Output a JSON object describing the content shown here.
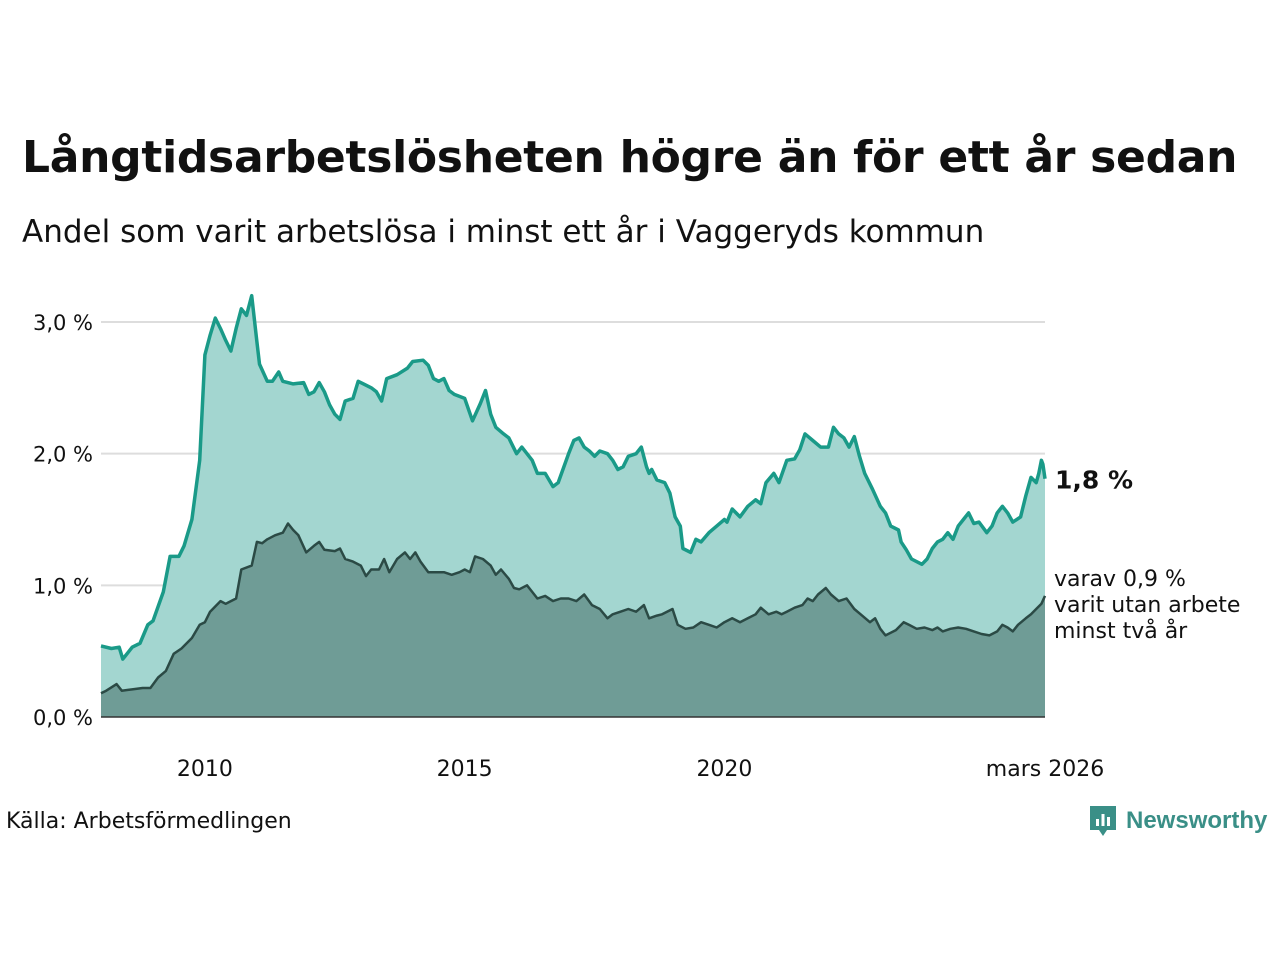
{
  "title": "Långtidsarbetslösheten högre än för ett år sedan",
  "subtitle": "Andel som varit arbetslösa i minst ett år i Vaggeryds kommun",
  "source": "Källa: Arbetsförmedlingen",
  "logo_text": "Newsworthy",
  "colors": {
    "upper_line": "#1a9a88",
    "upper_fill": "#a3d6d0",
    "lower_line": "#2b4a45",
    "lower_fill": "#6f9c96",
    "grid": "#dddddd",
    "logo": "#3a8f87"
  },
  "chart_data": {
    "type": "area",
    "x_unit": "year",
    "xlim": [
      2008.0,
      2026.17
    ],
    "ylim": [
      0,
      3.3
    ],
    "y_ticks": [
      0,
      1,
      2,
      3
    ],
    "y_tick_labels": [
      "0,0 %",
      "1,0 %",
      "2,0 %",
      "3,0 %"
    ],
    "x_ticks": [
      2010,
      2015,
      2020,
      2026.17
    ],
    "x_tick_labels": [
      "2010",
      "2015",
      "2020",
      "mars 2026"
    ],
    "series": [
      {
        "name": "Minst ett år",
        "end_label": "1,8 %",
        "points": [
          [
            2008.0,
            0.54
          ],
          [
            2008.2,
            0.52
          ],
          [
            2008.35,
            0.53
          ],
          [
            2008.42,
            0.44
          ],
          [
            2008.6,
            0.53
          ],
          [
            2008.75,
            0.56
          ],
          [
            2008.9,
            0.7
          ],
          [
            2009.0,
            0.73
          ],
          [
            2009.2,
            0.95
          ],
          [
            2009.33,
            1.22
          ],
          [
            2009.5,
            1.22
          ],
          [
            2009.6,
            1.3
          ],
          [
            2009.75,
            1.5
          ],
          [
            2009.9,
            1.95
          ],
          [
            2010.0,
            2.75
          ],
          [
            2010.1,
            2.9
          ],
          [
            2010.2,
            3.03
          ],
          [
            2010.3,
            2.95
          ],
          [
            2010.4,
            2.86
          ],
          [
            2010.5,
            2.78
          ],
          [
            2010.6,
            2.95
          ],
          [
            2010.7,
            3.1
          ],
          [
            2010.8,
            3.05
          ],
          [
            2010.9,
            3.2
          ],
          [
            2011.0,
            2.85
          ],
          [
            2011.05,
            2.68
          ],
          [
            2011.2,
            2.55
          ],
          [
            2011.3,
            2.55
          ],
          [
            2011.42,
            2.62
          ],
          [
            2011.5,
            2.55
          ],
          [
            2011.7,
            2.53
          ],
          [
            2011.9,
            2.54
          ],
          [
            2012.0,
            2.45
          ],
          [
            2012.1,
            2.47
          ],
          [
            2012.2,
            2.54
          ],
          [
            2012.3,
            2.47
          ],
          [
            2012.4,
            2.37
          ],
          [
            2012.5,
            2.3
          ],
          [
            2012.6,
            2.26
          ],
          [
            2012.7,
            2.4
          ],
          [
            2012.85,
            2.42
          ],
          [
            2012.95,
            2.55
          ],
          [
            2013.1,
            2.52
          ],
          [
            2013.2,
            2.5
          ],
          [
            2013.3,
            2.47
          ],
          [
            2013.4,
            2.4
          ],
          [
            2013.5,
            2.57
          ],
          [
            2013.7,
            2.6
          ],
          [
            2013.9,
            2.65
          ],
          [
            2014.0,
            2.7
          ],
          [
            2014.2,
            2.71
          ],
          [
            2014.3,
            2.67
          ],
          [
            2014.4,
            2.57
          ],
          [
            2014.5,
            2.55
          ],
          [
            2014.6,
            2.57
          ],
          [
            2014.7,
            2.48
          ],
          [
            2014.8,
            2.45
          ],
          [
            2015.0,
            2.42
          ],
          [
            2015.15,
            2.25
          ],
          [
            2015.3,
            2.38
          ],
          [
            2015.4,
            2.48
          ],
          [
            2015.5,
            2.3
          ],
          [
            2015.6,
            2.2
          ],
          [
            2015.75,
            2.15
          ],
          [
            2015.85,
            2.12
          ],
          [
            2016.0,
            2.0
          ],
          [
            2016.1,
            2.05
          ],
          [
            2016.3,
            1.95
          ],
          [
            2016.4,
            1.85
          ],
          [
            2016.55,
            1.85
          ],
          [
            2016.7,
            1.75
          ],
          [
            2016.8,
            1.78
          ],
          [
            2017.0,
            2.0
          ],
          [
            2017.1,
            2.1
          ],
          [
            2017.2,
            2.12
          ],
          [
            2017.3,
            2.05
          ],
          [
            2017.4,
            2.02
          ],
          [
            2017.5,
            1.98
          ],
          [
            2017.6,
            2.02
          ],
          [
            2017.75,
            2.0
          ],
          [
            2017.85,
            1.95
          ],
          [
            2017.95,
            1.88
          ],
          [
            2018.05,
            1.9
          ],
          [
            2018.15,
            1.98
          ],
          [
            2018.3,
            2.0
          ],
          [
            2018.4,
            2.05
          ],
          [
            2018.5,
            1.9
          ],
          [
            2018.55,
            1.85
          ],
          [
            2018.6,
            1.88
          ],
          [
            2018.7,
            1.8
          ],
          [
            2018.85,
            1.78
          ],
          [
            2018.95,
            1.7
          ],
          [
            2019.05,
            1.52
          ],
          [
            2019.15,
            1.45
          ],
          [
            2019.2,
            1.28
          ],
          [
            2019.35,
            1.25
          ],
          [
            2019.45,
            1.35
          ],
          [
            2019.55,
            1.33
          ],
          [
            2019.7,
            1.4
          ],
          [
            2019.85,
            1.45
          ],
          [
            2020.0,
            1.5
          ],
          [
            2020.05,
            1.48
          ],
          [
            2020.15,
            1.58
          ],
          [
            2020.3,
            1.52
          ],
          [
            2020.45,
            1.6
          ],
          [
            2020.6,
            1.65
          ],
          [
            2020.7,
            1.62
          ],
          [
            2020.8,
            1.78
          ],
          [
            2020.95,
            1.85
          ],
          [
            2021.05,
            1.78
          ],
          [
            2021.2,
            1.95
          ],
          [
            2021.35,
            1.96
          ],
          [
            2021.45,
            2.03
          ],
          [
            2021.55,
            2.15
          ],
          [
            2021.7,
            2.1
          ],
          [
            2021.85,
            2.05
          ],
          [
            2022.0,
            2.05
          ],
          [
            2022.1,
            2.2
          ],
          [
            2022.2,
            2.15
          ],
          [
            2022.3,
            2.12
          ],
          [
            2022.4,
            2.05
          ],
          [
            2022.5,
            2.13
          ],
          [
            2022.6,
            1.98
          ],
          [
            2022.7,
            1.85
          ],
          [
            2022.85,
            1.73
          ],
          [
            2023.0,
            1.6
          ],
          [
            2023.1,
            1.55
          ],
          [
            2023.2,
            1.45
          ],
          [
            2023.35,
            1.42
          ],
          [
            2023.4,
            1.33
          ],
          [
            2023.5,
            1.27
          ],
          [
            2023.6,
            1.2
          ],
          [
            2023.8,
            1.16
          ],
          [
            2023.9,
            1.2
          ],
          [
            2024.0,
            1.28
          ],
          [
            2024.1,
            1.33
          ],
          [
            2024.2,
            1.35
          ],
          [
            2024.3,
            1.4
          ],
          [
            2024.4,
            1.35
          ],
          [
            2024.5,
            1.45
          ],
          [
            2024.6,
            1.5
          ],
          [
            2024.7,
            1.55
          ],
          [
            2024.8,
            1.47
          ],
          [
            2024.9,
            1.48
          ],
          [
            2025.05,
            1.4
          ],
          [
            2025.15,
            1.45
          ],
          [
            2025.25,
            1.55
          ],
          [
            2025.35,
            1.6
          ],
          [
            2025.45,
            1.55
          ],
          [
            2025.55,
            1.48
          ],
          [
            2025.7,
            1.52
          ],
          [
            2025.8,
            1.68
          ],
          [
            2025.9,
            1.82
          ],
          [
            2026.0,
            1.78
          ],
          [
            2026.05,
            1.85
          ],
          [
            2026.1,
            1.95
          ],
          [
            2026.13,
            1.92
          ],
          [
            2026.17,
            1.81
          ]
        ]
      },
      {
        "name": "Minst två år",
        "end_label_lines": [
          "varav 0,9 %",
          "varit utan arbete",
          "minst två år"
        ],
        "points": [
          [
            2008.0,
            0.18
          ],
          [
            2008.1,
            0.2
          ],
          [
            2008.3,
            0.25
          ],
          [
            2008.4,
            0.2
          ],
          [
            2008.6,
            0.21
          ],
          [
            2008.8,
            0.22
          ],
          [
            2008.95,
            0.22
          ],
          [
            2009.1,
            0.3
          ],
          [
            2009.25,
            0.35
          ],
          [
            2009.4,
            0.48
          ],
          [
            2009.55,
            0.52
          ],
          [
            2009.75,
            0.6
          ],
          [
            2009.9,
            0.7
          ],
          [
            2010.0,
            0.72
          ],
          [
            2010.1,
            0.8
          ],
          [
            2010.3,
            0.88
          ],
          [
            2010.4,
            0.86
          ],
          [
            2010.5,
            0.88
          ],
          [
            2010.6,
            0.9
          ],
          [
            2010.7,
            1.12
          ],
          [
            2010.9,
            1.15
          ],
          [
            2011.0,
            1.33
          ],
          [
            2011.1,
            1.32
          ],
          [
            2011.2,
            1.35
          ],
          [
            2011.35,
            1.38
          ],
          [
            2011.5,
            1.4
          ],
          [
            2011.6,
            1.47
          ],
          [
            2011.7,
            1.42
          ],
          [
            2011.8,
            1.38
          ],
          [
            2011.95,
            1.25
          ],
          [
            2012.1,
            1.3
          ],
          [
            2012.2,
            1.33
          ],
          [
            2012.3,
            1.27
          ],
          [
            2012.5,
            1.26
          ],
          [
            2012.6,
            1.28
          ],
          [
            2012.7,
            1.2
          ],
          [
            2012.85,
            1.18
          ],
          [
            2013.0,
            1.15
          ],
          [
            2013.1,
            1.07
          ],
          [
            2013.2,
            1.12
          ],
          [
            2013.35,
            1.12
          ],
          [
            2013.45,
            1.2
          ],
          [
            2013.55,
            1.1
          ],
          [
            2013.7,
            1.2
          ],
          [
            2013.85,
            1.25
          ],
          [
            2013.95,
            1.2
          ],
          [
            2014.05,
            1.25
          ],
          [
            2014.15,
            1.18
          ],
          [
            2014.3,
            1.1
          ],
          [
            2014.45,
            1.1
          ],
          [
            2014.6,
            1.1
          ],
          [
            2014.75,
            1.08
          ],
          [
            2014.9,
            1.1
          ],
          [
            2015.0,
            1.12
          ],
          [
            2015.1,
            1.1
          ],
          [
            2015.2,
            1.22
          ],
          [
            2015.35,
            1.2
          ],
          [
            2015.5,
            1.15
          ],
          [
            2015.6,
            1.08
          ],
          [
            2015.7,
            1.12
          ],
          [
            2015.85,
            1.05
          ],
          [
            2015.95,
            0.98
          ],
          [
            2016.05,
            0.97
          ],
          [
            2016.2,
            1.0
          ],
          [
            2016.3,
            0.95
          ],
          [
            2016.4,
            0.9
          ],
          [
            2016.55,
            0.92
          ],
          [
            2016.7,
            0.88
          ],
          [
            2016.85,
            0.9
          ],
          [
            2017.0,
            0.9
          ],
          [
            2017.15,
            0.88
          ],
          [
            2017.3,
            0.93
          ],
          [
            2017.45,
            0.85
          ],
          [
            2017.6,
            0.82
          ],
          [
            2017.75,
            0.75
          ],
          [
            2017.85,
            0.78
          ],
          [
            2018.0,
            0.8
          ],
          [
            2018.15,
            0.82
          ],
          [
            2018.3,
            0.8
          ],
          [
            2018.45,
            0.85
          ],
          [
            2018.55,
            0.75
          ],
          [
            2018.7,
            0.77
          ],
          [
            2018.8,
            0.78
          ],
          [
            2019.0,
            0.82
          ],
          [
            2019.1,
            0.7
          ],
          [
            2019.25,
            0.67
          ],
          [
            2019.4,
            0.68
          ],
          [
            2019.55,
            0.72
          ],
          [
            2019.7,
            0.7
          ],
          [
            2019.85,
            0.68
          ],
          [
            2020.0,
            0.72
          ],
          [
            2020.15,
            0.75
          ],
          [
            2020.3,
            0.72
          ],
          [
            2020.45,
            0.75
          ],
          [
            2020.6,
            0.78
          ],
          [
            2020.7,
            0.83
          ],
          [
            2020.85,
            0.78
          ],
          [
            2021.0,
            0.8
          ],
          [
            2021.1,
            0.78
          ],
          [
            2021.2,
            0.8
          ],
          [
            2021.35,
            0.83
          ],
          [
            2021.5,
            0.85
          ],
          [
            2021.6,
            0.9
          ],
          [
            2021.7,
            0.88
          ],
          [
            2021.8,
            0.93
          ],
          [
            2021.95,
            0.98
          ],
          [
            2022.05,
            0.93
          ],
          [
            2022.2,
            0.88
          ],
          [
            2022.35,
            0.9
          ],
          [
            2022.5,
            0.82
          ],
          [
            2022.65,
            0.77
          ],
          [
            2022.8,
            0.72
          ],
          [
            2022.9,
            0.75
          ],
          [
            2023.0,
            0.67
          ],
          [
            2023.1,
            0.62
          ],
          [
            2023.3,
            0.66
          ],
          [
            2023.45,
            0.72
          ],
          [
            2023.55,
            0.7
          ],
          [
            2023.7,
            0.67
          ],
          [
            2023.85,
            0.68
          ],
          [
            2024.0,
            0.66
          ],
          [
            2024.1,
            0.68
          ],
          [
            2024.2,
            0.65
          ],
          [
            2024.35,
            0.67
          ],
          [
            2024.5,
            0.68
          ],
          [
            2024.65,
            0.67
          ],
          [
            2024.8,
            0.65
          ],
          [
            2024.95,
            0.63
          ],
          [
            2025.1,
            0.62
          ],
          [
            2025.25,
            0.65
          ],
          [
            2025.35,
            0.7
          ],
          [
            2025.45,
            0.68
          ],
          [
            2025.55,
            0.65
          ],
          [
            2025.65,
            0.7
          ],
          [
            2025.8,
            0.75
          ],
          [
            2025.9,
            0.78
          ],
          [
            2026.0,
            0.82
          ],
          [
            2026.1,
            0.86
          ],
          [
            2026.17,
            0.92
          ]
        ]
      }
    ]
  }
}
